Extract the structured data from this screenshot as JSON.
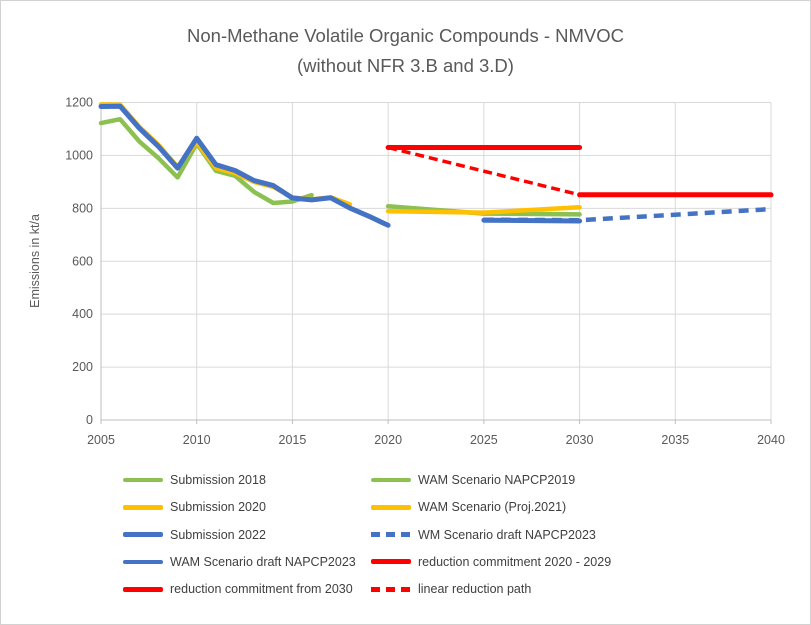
{
  "colors": {
    "green": "#8CC152",
    "yellow": "#FFC000",
    "blue": "#4472C4",
    "red": "#FF0000",
    "gridline": "#D9D9D9",
    "axis": "#BFBFBF",
    "tick_text": "#595959",
    "legend_text": "#404040",
    "title_text": "#595959"
  },
  "chart_data": {
    "type": "line",
    "title": "Non-Methane Volatile Organic Compounds - NMVOC",
    "subtitle": "(without NFR 3.B and 3.D)",
    "xlabel": "",
    "ylabel": "Emissions in kt/a",
    "xlim": [
      2005,
      2040
    ],
    "ylim": [
      0,
      1200
    ],
    "xticks": [
      2005,
      2010,
      2015,
      2020,
      2025,
      2030,
      2035,
      2040
    ],
    "yticks": [
      0,
      200,
      400,
      600,
      800,
      1000,
      1200
    ],
    "grid": true,
    "legend_position": "bottom-two-columns",
    "series": [
      {
        "name": "Submission 2018",
        "color": "#8CC152",
        "style": "solid",
        "width": 4.5,
        "points": [
          [
            2005,
            1122
          ],
          [
            2006,
            1137
          ],
          [
            2007,
            1053
          ],
          [
            2008,
            990
          ],
          [
            2009,
            917
          ],
          [
            2010,
            1045
          ],
          [
            2011,
            942
          ],
          [
            2012,
            923
          ],
          [
            2013,
            862
          ],
          [
            2014,
            820
          ],
          [
            2015,
            826
          ],
          [
            2016,
            850
          ]
        ]
      },
      {
        "name": "Submission 2020",
        "color": "#FFC000",
        "style": "solid",
        "width": 4.5,
        "points": [
          [
            2005,
            1193
          ],
          [
            2006,
            1192
          ],
          [
            2007,
            1108
          ],
          [
            2008,
            1040
          ],
          [
            2009,
            957
          ],
          [
            2010,
            1050
          ],
          [
            2011,
            952
          ],
          [
            2012,
            933
          ],
          [
            2013,
            900
          ],
          [
            2014,
            881
          ],
          [
            2015,
            841
          ],
          [
            2016,
            834
          ],
          [
            2017,
            842
          ],
          [
            2018,
            815
          ]
        ]
      },
      {
        "name": "Submission 2022",
        "color": "#4472C4",
        "style": "solid",
        "width": 5,
        "points": [
          [
            2005,
            1185
          ],
          [
            2006,
            1186
          ],
          [
            2007,
            1103
          ],
          [
            2008,
            1034
          ],
          [
            2009,
            952
          ],
          [
            2010,
            1065
          ],
          [
            2011,
            965
          ],
          [
            2012,
            943
          ],
          [
            2013,
            905
          ],
          [
            2014,
            886
          ],
          [
            2015,
            839
          ],
          [
            2016,
            832
          ],
          [
            2017,
            840
          ],
          [
            2018,
            801
          ],
          [
            2019,
            770
          ],
          [
            2020,
            736
          ]
        ]
      },
      {
        "name": "WAM Scenario NAPCP2019",
        "color": "#8CC152",
        "style": "solid",
        "width": 4.5,
        "points": [
          [
            2020,
            808
          ],
          [
            2025,
            780
          ],
          [
            2030,
            777
          ]
        ]
      },
      {
        "name": "WAM Scenario (Proj.2021)",
        "color": "#FFC000",
        "style": "solid",
        "width": 4.5,
        "points": [
          [
            2020,
            789
          ],
          [
            2025,
            784
          ],
          [
            2030,
            804
          ]
        ]
      },
      {
        "name": "WAM Scenario draft NAPCP2023",
        "color": "#4472C4",
        "style": "solid",
        "width": 5,
        "points": [
          [
            2025,
            755
          ],
          [
            2030,
            752
          ]
        ]
      },
      {
        "name": "WM Scenario draft NAPCP2023",
        "color": "#4472C4",
        "style": "dashed",
        "dash": "10 7",
        "width": 4.5,
        "points": [
          [
            2025,
            757
          ],
          [
            2030,
            755
          ],
          [
            2035,
            776
          ],
          [
            2040,
            797
          ]
        ]
      },
      {
        "name": "reduction commitment 2020 - 2029",
        "color": "#FF0000",
        "style": "solid",
        "width": 5,
        "points": [
          [
            2020,
            1030
          ],
          [
            2030,
            1030
          ]
        ]
      },
      {
        "name": "linear reduction path",
        "color": "#FF0000",
        "style": "dashed",
        "dash": "9 5",
        "width": 3.5,
        "points": [
          [
            2020,
            1030
          ],
          [
            2030,
            851
          ]
        ]
      },
      {
        "name": "reduction commitment from 2030",
        "color": "#FF0000",
        "style": "solid",
        "width": 5,
        "points": [
          [
            2030,
            851
          ],
          [
            2040,
            851
          ]
        ]
      }
    ]
  },
  "legend": {
    "items": [
      {
        "label": "Submission 2018",
        "color": "#8CC152",
        "style": "solid"
      },
      {
        "label": "WAM Scenario NAPCP2019",
        "color": "#8CC152",
        "style": "solid"
      },
      {
        "label": "Submission 2020",
        "color": "#FFC000",
        "style": "solid"
      },
      {
        "label": "WAM Scenario (Proj.2021)",
        "color": "#FFC000",
        "style": "solid"
      },
      {
        "label": "Submission 2022",
        "color": "#4472C4",
        "style": "solid"
      },
      {
        "label": "WM Scenario draft NAPCP2023",
        "color": "#4472C4",
        "style": "dashed"
      },
      {
        "label": "WAM Scenario draft NAPCP2023",
        "color": "#4472C4",
        "style": "solid"
      },
      {
        "label": "reduction commitment 2020 - 2029",
        "color": "#FF0000",
        "style": "solid"
      },
      {
        "label": "reduction commitment from 2030",
        "color": "#FF0000",
        "style": "solid"
      },
      {
        "label": "linear reduction path",
        "color": "#FF0000",
        "style": "dashed"
      }
    ]
  }
}
